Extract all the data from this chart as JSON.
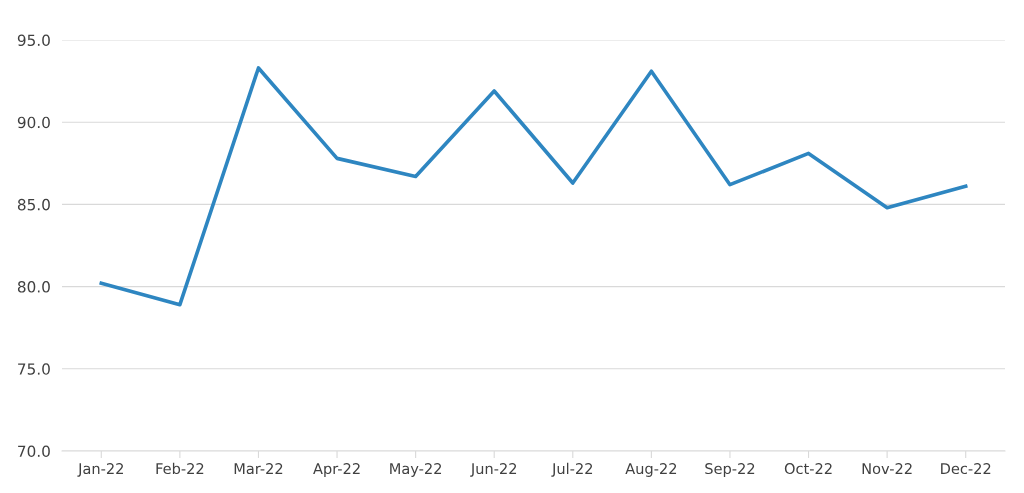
{
  "chart_data": {
    "type": "line",
    "categories": [
      "Jan-22",
      "Feb-22",
      "Mar-22",
      "Apr-22",
      "May-22",
      "Jun-22",
      "Jul-22",
      "Aug-22",
      "Sep-22",
      "Oct-22",
      "Nov-22",
      "Dec-22"
    ],
    "series": [
      {
        "color": "#2e86c1",
        "values": [
          80.2,
          78.9,
          93.3,
          87.8,
          86.7,
          91.9,
          86.3,
          93.1,
          86.2,
          88.1,
          84.8,
          86.1
        ]
      }
    ],
    "ylim": [
      70,
      95
    ],
    "yticks": [
      {
        "value": 70,
        "label": "70.0"
      },
      {
        "value": 75,
        "label": "75.0"
      },
      {
        "value": 80,
        "label": "80.0"
      },
      {
        "value": 85,
        "label": "85.0"
      },
      {
        "value": 90,
        "label": "90.0"
      },
      {
        "value": 95,
        "label": "95.0"
      }
    ],
    "grid": "y",
    "legend": false,
    "marker": "none",
    "line_style": "solid"
  }
}
